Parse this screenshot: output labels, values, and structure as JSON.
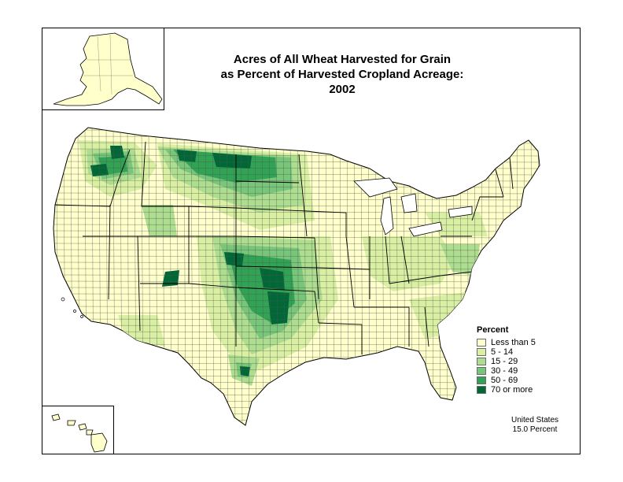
{
  "title": {
    "line1": "Acres of All Wheat Harvested for Grain",
    "line2": "as Percent of Harvested Cropland Acreage:  2002"
  },
  "legend": {
    "title": "Percent",
    "items": [
      {
        "label": "Less than 5",
        "color": "#ffffcc"
      },
      {
        "label": "5 - 14",
        "color": "#d9f0a3"
      },
      {
        "label": "15 - 29",
        "color": "#addd8e"
      },
      {
        "label": "30 - 49",
        "color": "#78c679"
      },
      {
        "label": "50 - 69",
        "color": "#31a354"
      },
      {
        "label": "70 or more",
        "color": "#006837"
      }
    ]
  },
  "summary": {
    "line1": "United States",
    "line2": "15.0 Percent"
  },
  "insets": [
    "Alaska",
    "Hawaii"
  ],
  "colors": {
    "county_border": "#555555",
    "state_border": "#000000"
  }
}
